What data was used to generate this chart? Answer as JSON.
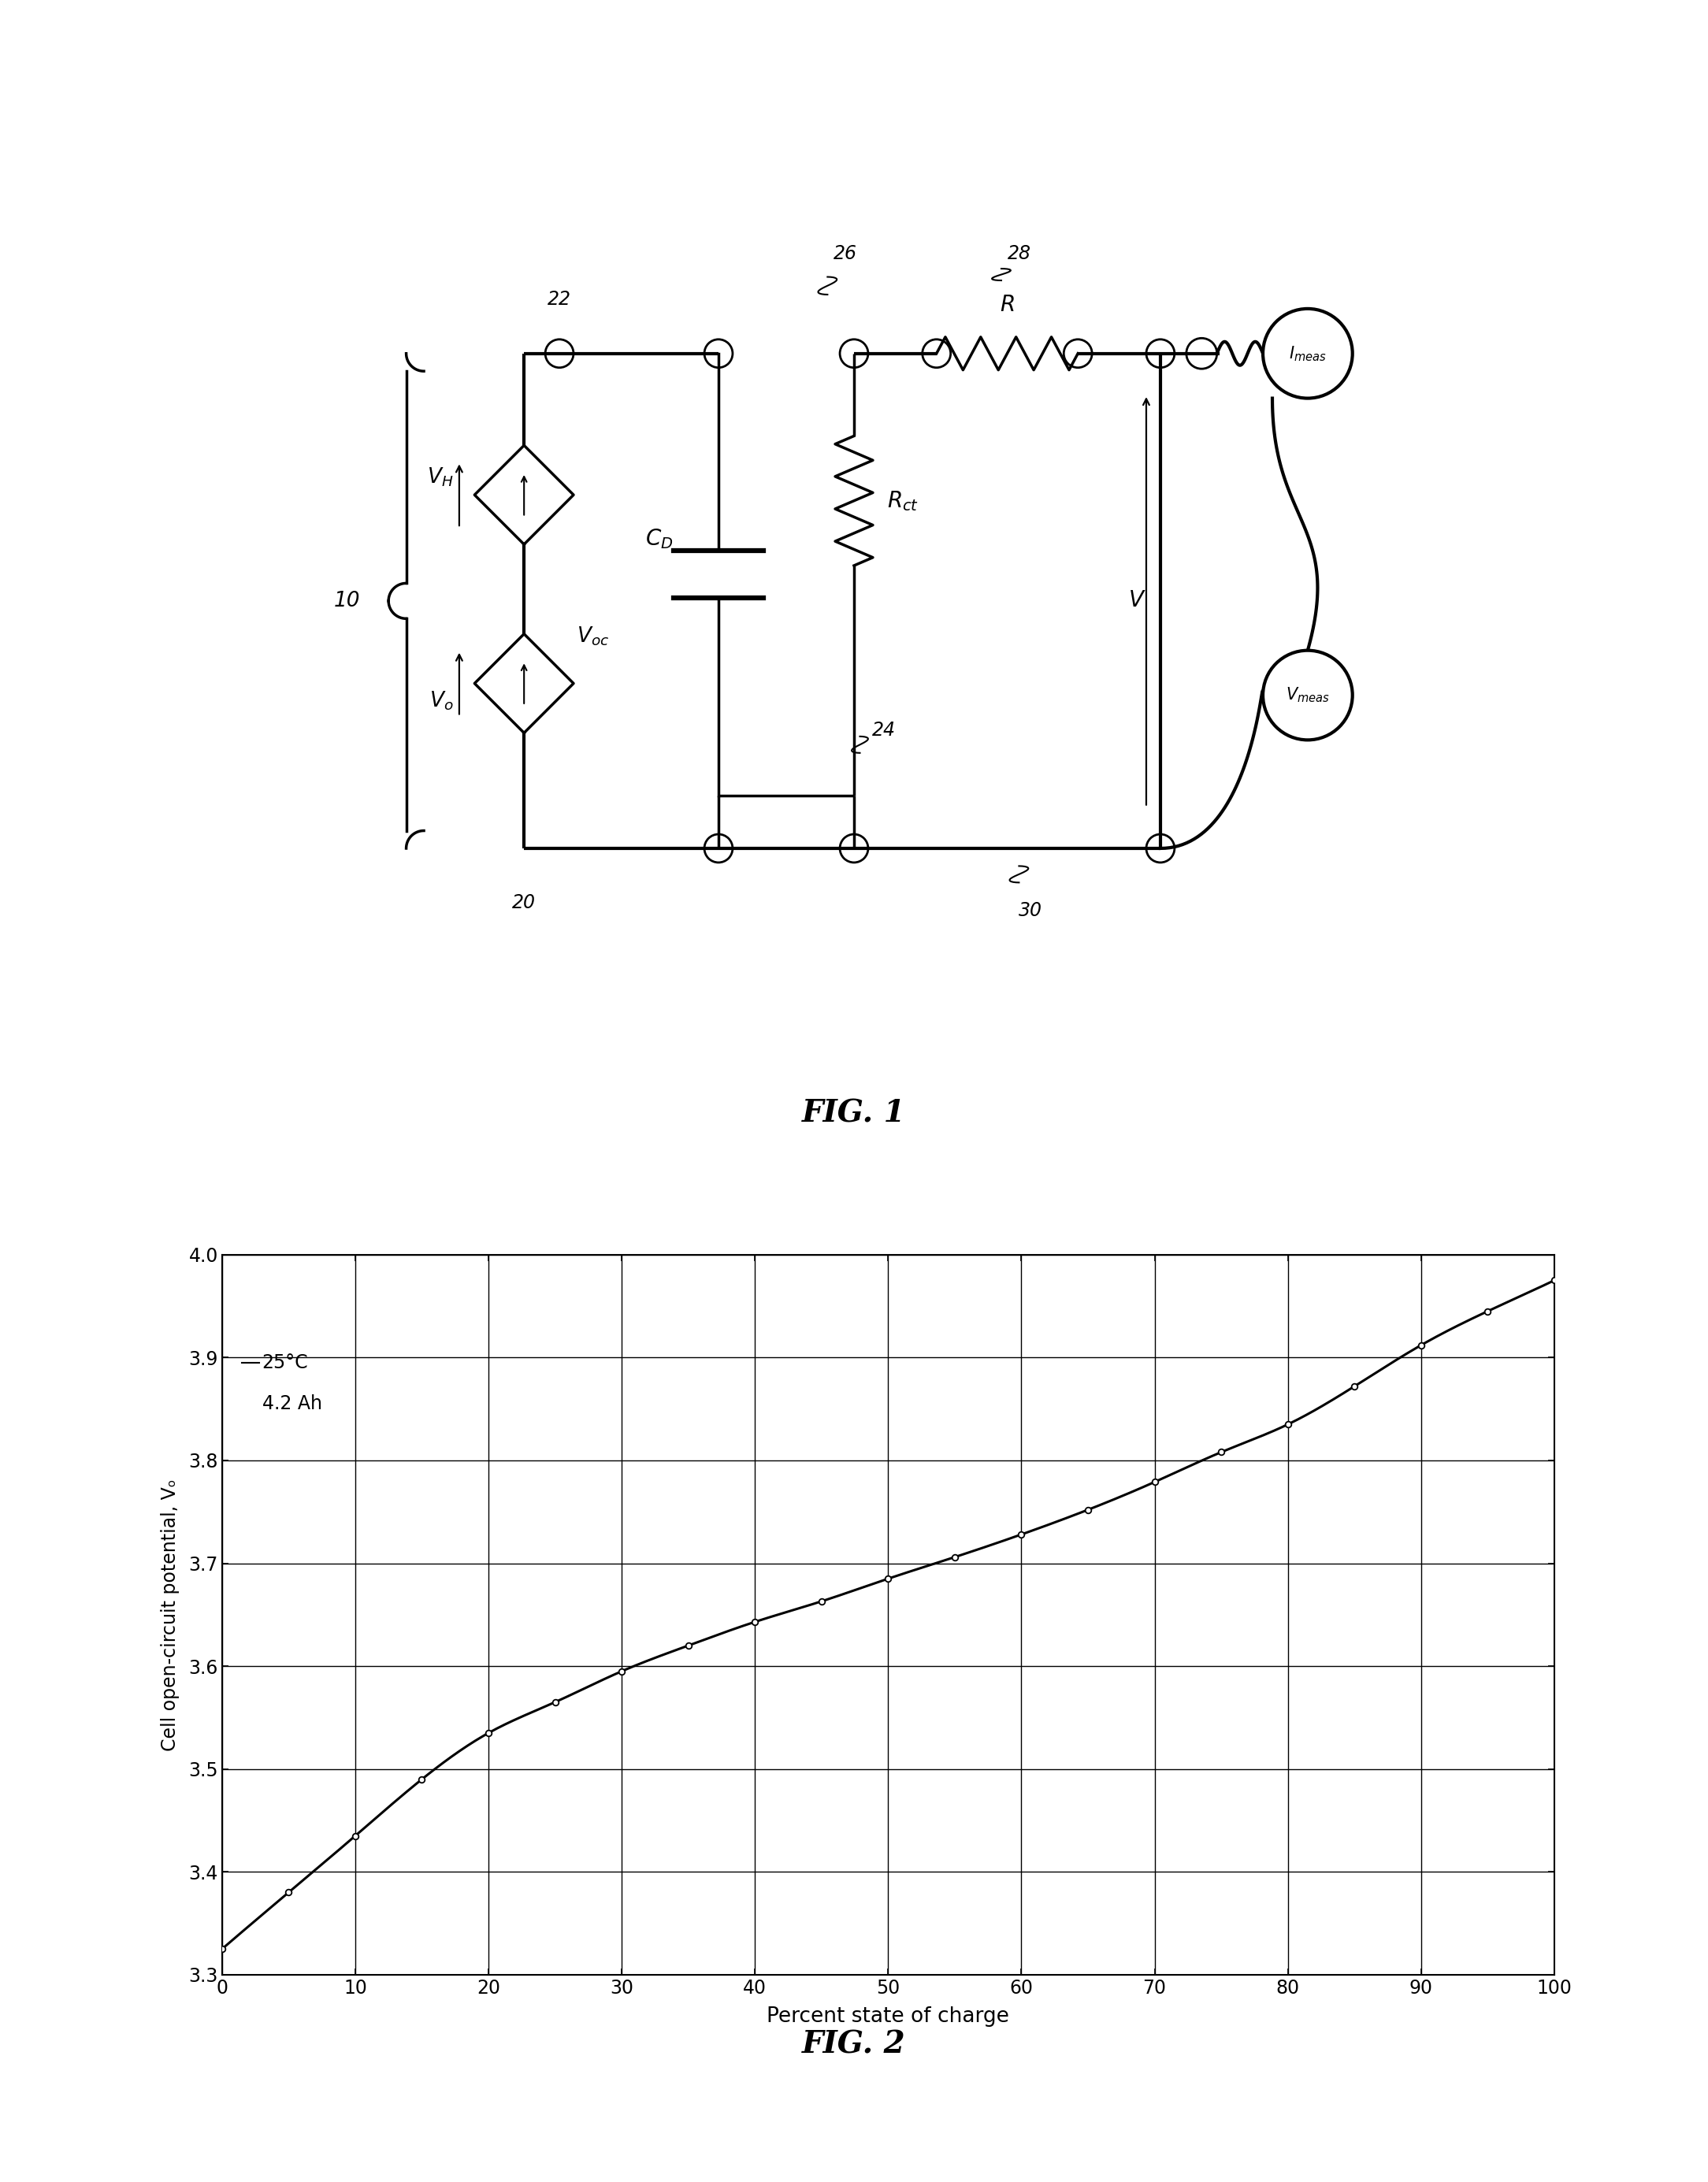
{
  "fig1_title": "FIG. 1",
  "fig2_title": "FIG. 2",
  "fig2_xlabel": "Percent state of charge",
  "fig2_ylabel": "Cell open-circuit potential, Vₒ",
  "fig2_annotation_line1": "25°C",
  "fig2_annotation_line2": "4.2 Ah",
  "fig2_xlim": [
    0,
    100
  ],
  "fig2_ylim": [
    3.3,
    4.0
  ],
  "fig2_xticks": [
    0,
    10,
    20,
    30,
    40,
    50,
    60,
    70,
    80,
    90,
    100
  ],
  "fig2_yticks": [
    3.3,
    3.4,
    3.5,
    3.6,
    3.7,
    3.8,
    3.9,
    4.0
  ],
  "background_color": "#ffffff",
  "line_color": "#000000",
  "soc_data": [
    0,
    5,
    10,
    15,
    20,
    25,
    30,
    35,
    40,
    45,
    50,
    55,
    60,
    65,
    70,
    75,
    80,
    85,
    90,
    95,
    100
  ],
  "voc_data": [
    3.325,
    3.38,
    3.435,
    3.49,
    3.535,
    3.565,
    3.595,
    3.62,
    3.643,
    3.663,
    3.685,
    3.706,
    3.728,
    3.752,
    3.779,
    3.808,
    3.835,
    3.872,
    3.912,
    3.945,
    3.975
  ],
  "circuit_labels": {
    "label_10": "10",
    "label_20": "20",
    "label_22": "22",
    "label_24": "24",
    "label_26": "26",
    "label_28": "28",
    "label_30": "30",
    "label_VH": "V",
    "label_VH_sub": "H",
    "label_Vo": "V",
    "label_Vo_sub": "o",
    "label_Voc": "V",
    "label_Voc_sub": "oc",
    "label_V": "V",
    "label_CD": "C",
    "label_CD_sub": "D",
    "label_R": "R",
    "label_Rct": "R",
    "label_Rct_sub": "ct",
    "label_Imeas": "I",
    "label_Imeas_sub": "meas",
    "label_Vmeas": "V",
    "label_Vmeas_sub": "meas"
  }
}
